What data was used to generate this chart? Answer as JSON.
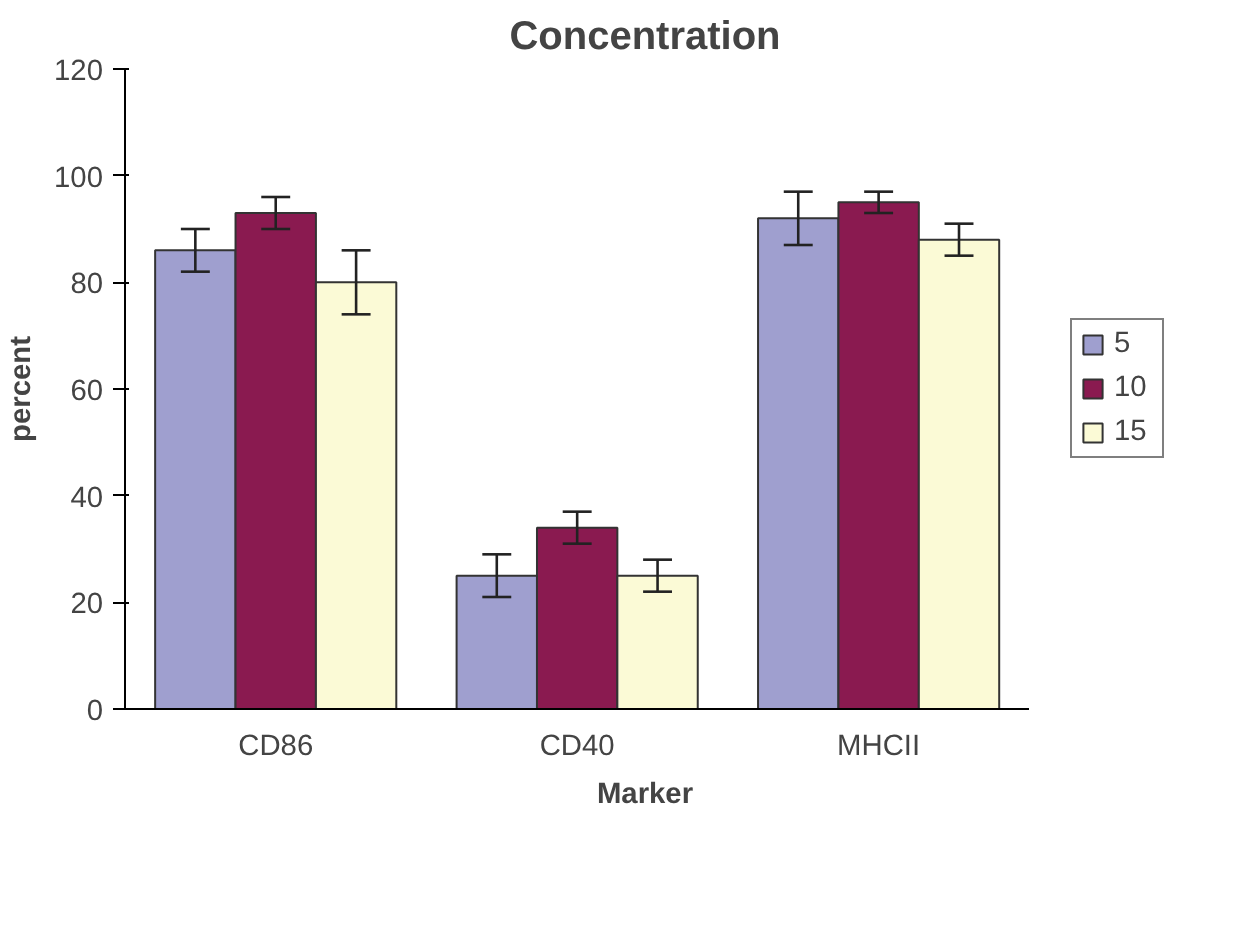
{
  "chart_data": {
    "type": "bar",
    "title": "Concentration",
    "xlabel": "Marker",
    "ylabel": "percent",
    "categories": [
      "CD86",
      "CD40",
      "MHCII"
    ],
    "series": [
      {
        "name": "5",
        "color": "#9f9fcf",
        "values": [
          86,
          25,
          92
        ],
        "errors": [
          4,
          4,
          5
        ]
      },
      {
        "name": "10",
        "color": "#8a1a50",
        "values": [
          93,
          34,
          95
        ],
        "errors": [
          3,
          3,
          2
        ]
      },
      {
        "name": "15",
        "color": "#fbfad6",
        "values": [
          80,
          25,
          88
        ],
        "errors": [
          6,
          3,
          3
        ]
      }
    ],
    "ylim": [
      0,
      120
    ],
    "yticks": [
      0,
      20,
      40,
      60,
      80,
      100,
      120
    ],
    "grid": false,
    "legend": "right"
  }
}
